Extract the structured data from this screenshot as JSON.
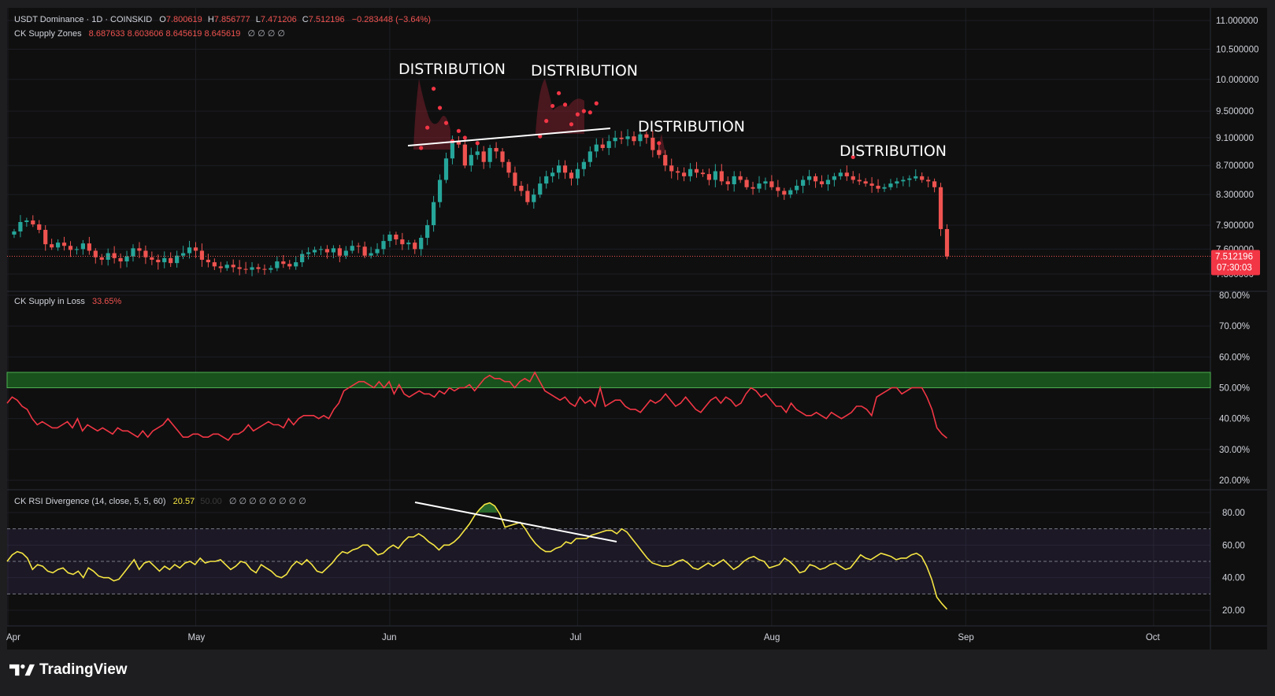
{
  "legend": {
    "main": {
      "symbol": "USDT Dominance · 1D · COINSKID",
      "o_label": "O",
      "o": "7.800619",
      "h_label": "H",
      "h": "7.856777",
      "l_label": "L",
      "l": "7.471206",
      "c_label": "C",
      "c": "7.512196",
      "change": "−0.283448 (−3.64%)"
    },
    "supply_zones": {
      "name": "CK Supply Zones",
      "values": "8.687633  8.603606  8.645619  8.645619",
      "na": "∅  ∅  ∅  ∅"
    },
    "supply_loss": {
      "name": "CK Supply in Loss",
      "value": "33.65%"
    },
    "rsi": {
      "name": "CK RSI Divergence (14, close, 5, 5, 60)",
      "value": "20.57",
      "dim": "50.00",
      "na": "∅  ∅  ∅  ∅  ∅  ∅  ∅  ∅"
    }
  },
  "price_badge": {
    "value": "7.512196",
    "countdown": "07:30:03"
  },
  "annotations": [
    "DISTRIBUTION",
    "DISTRIBUTION",
    "DISTRIBUTION",
    "DISTRIBUTION"
  ],
  "brand": {
    "name": "TradingView"
  },
  "colors": {
    "up": "#26a69a",
    "down": "#ef5350",
    "supply_line": "#f23645",
    "rsi_line": "#f5e543",
    "zone_green": "#1b5e20",
    "background": "#0f0f0f"
  },
  "chart_data": [
    {
      "type": "candlestick",
      "title": "USDT Dominance · 1D · COINSKID",
      "y_ticks": [
        "11.000000",
        "10.500000",
        "10.000000",
        "9.500000",
        "9.100000",
        "8.700000",
        "8.300000",
        "7.900000",
        "7.600000",
        "7.300000"
      ],
      "ylim": [
        7.3,
        11.0
      ],
      "scale": "log",
      "x_tick_labels": [
        "Apr",
        "May",
        "Jun",
        "Jul",
        "Aug",
        "Sep",
        "Oct"
      ],
      "last_price": 7.512196,
      "closes": [
        7.82,
        7.94,
        7.96,
        7.91,
        7.84,
        7.66,
        7.62,
        7.68,
        7.64,
        7.59,
        7.6,
        7.67,
        7.58,
        7.5,
        7.47,
        7.55,
        7.49,
        7.45,
        7.51,
        7.61,
        7.58,
        7.5,
        7.47,
        7.44,
        7.49,
        7.43,
        7.52,
        7.55,
        7.62,
        7.58,
        7.47,
        7.44,
        7.39,
        7.37,
        7.41,
        7.38,
        7.36,
        7.35,
        7.38,
        7.36,
        7.35,
        7.37,
        7.45,
        7.42,
        7.39,
        7.44,
        7.54,
        7.56,
        7.59,
        7.6,
        7.56,
        7.61,
        7.52,
        7.58,
        7.64,
        7.63,
        7.52,
        7.55,
        7.6,
        7.7,
        7.78,
        7.72,
        7.66,
        7.68,
        7.6,
        7.74,
        7.9,
        8.2,
        8.5,
        8.8,
        9.05,
        9.0,
        8.7,
        8.85,
        8.9,
        8.75,
        8.95,
        8.9,
        8.75,
        8.6,
        8.42,
        8.35,
        8.2,
        8.3,
        8.45,
        8.55,
        8.6,
        8.7,
        8.6,
        8.52,
        8.65,
        8.75,
        8.9,
        9.0,
        8.95,
        9.05,
        9.1,
        9.08,
        9.12,
        9.05,
        9.15,
        9.1,
        8.92,
        8.85,
        8.7,
        8.62,
        8.6,
        8.55,
        8.65,
        8.6,
        8.58,
        8.5,
        8.62,
        8.48,
        8.44,
        8.55,
        8.5,
        8.4,
        8.38,
        8.45,
        8.48,
        8.4,
        8.35,
        8.3,
        8.36,
        8.42,
        8.5,
        8.55,
        8.48,
        8.44,
        8.5,
        8.55,
        8.6,
        8.55,
        8.5,
        8.48,
        8.45,
        8.42,
        8.38,
        8.4,
        8.45,
        8.48,
        8.5,
        8.52,
        8.55,
        8.5,
        8.48,
        8.4,
        7.85,
        7.51
      ],
      "supply_zone_dots": [
        8.95,
        9.25,
        9.85,
        9.55,
        9.32,
        9.05,
        9.2,
        9.1,
        9.02,
        9.12,
        9.35,
        9.58,
        9.78,
        9.6,
        9.3,
        9.45,
        9.5,
        9.48,
        9.62,
        9.02,
        8.82
      ]
    },
    {
      "type": "line",
      "title": "CK Supply in Loss",
      "y_ticks": [
        "80.00%",
        "70.00%",
        "60.00%",
        "50.00%",
        "40.00%",
        "30.00%",
        "20.00%"
      ],
      "ylim": [
        20,
        80
      ],
      "band": [
        50,
        55
      ],
      "last_value": 33.65,
      "values": [
        45,
        47,
        46,
        44,
        43,
        40,
        38,
        39,
        38,
        37,
        37,
        38,
        39,
        37,
        40,
        36,
        38,
        37,
        36,
        37,
        36,
        35,
        37,
        36,
        36,
        35,
        34,
        36,
        34,
        36,
        37,
        38,
        40,
        38,
        36,
        34,
        34,
        35,
        35,
        34,
        34,
        35,
        35,
        34,
        33,
        35,
        35,
        36,
        38,
        36,
        37,
        38,
        39,
        38,
        38,
        37,
        40,
        38,
        40,
        41,
        41,
        41,
        40,
        41,
        40,
        43,
        45,
        49,
        50,
        51,
        52,
        52,
        51,
        50,
        52,
        50,
        52,
        48,
        51,
        48,
        47,
        48,
        49,
        48,
        48,
        47,
        49,
        48,
        50,
        49,
        50,
        50,
        51,
        49,
        51,
        53,
        54,
        53,
        53,
        52,
        52,
        50,
        52,
        53,
        52,
        55,
        52,
        49,
        48,
        47,
        46,
        47,
        45,
        44,
        47,
        45,
        46,
        44,
        50,
        44,
        45,
        46,
        46,
        44,
        43,
        43,
        42,
        44,
        46,
        45,
        46,
        48,
        46,
        44,
        45,
        47,
        45,
        43,
        42,
        44,
        46,
        47,
        45,
        47,
        46,
        44,
        45,
        48,
        50,
        49,
        47,
        48,
        46,
        44,
        44,
        42,
        45,
        43,
        42,
        41,
        41,
        42,
        41,
        40,
        42,
        41,
        40,
        41,
        42,
        44,
        44,
        43,
        41,
        47,
        48,
        49,
        50,
        50,
        48,
        49,
        50,
        50,
        50,
        47,
        43,
        37,
        35,
        33.65
      ],
      "color": "#f23645"
    },
    {
      "type": "line",
      "title": "CK RSI Divergence (14, close, 5, 5, 60)",
      "y_ticks": [
        "80.00",
        "60.00",
        "40.00",
        "20.00"
      ],
      "ylim": [
        20,
        80
      ],
      "band": [
        30,
        70
      ],
      "last_value": 20.57,
      "values": [
        50,
        54,
        56,
        55,
        52,
        45,
        48,
        47,
        44,
        43,
        45,
        46,
        43,
        42,
        44,
        40,
        46,
        44,
        41,
        40,
        40,
        38,
        39,
        43,
        47,
        51,
        45,
        49,
        50,
        47,
        44,
        47,
        45,
        48,
        46,
        49,
        50,
        48,
        52,
        49,
        50,
        50,
        51,
        48,
        45,
        47,
        50,
        49,
        45,
        43,
        48,
        46,
        44,
        41,
        40,
        42,
        47,
        50,
        48,
        51,
        48,
        44,
        43,
        46,
        49,
        53,
        56,
        55,
        57,
        58,
        60,
        60,
        57,
        54,
        55,
        58,
        60,
        58,
        62,
        65,
        65,
        67,
        65,
        62,
        60,
        57,
        60,
        60,
        62,
        65,
        69,
        73,
        78,
        82,
        85,
        86,
        84,
        79,
        71,
        72,
        73,
        74,
        70,
        65,
        61,
        58,
        56,
        56,
        58,
        59,
        62,
        61,
        64,
        64,
        64,
        66,
        67,
        68,
        69,
        69,
        67,
        70,
        68,
        64,
        60,
        56,
        52,
        49,
        48,
        47,
        47,
        48,
        50,
        51,
        49,
        46,
        45,
        47,
        49,
        47,
        49,
        51,
        48,
        45,
        47,
        50,
        52,
        53,
        51,
        50,
        46,
        47,
        48,
        52,
        50,
        47,
        43,
        44,
        48,
        47,
        45,
        46,
        48,
        49,
        47,
        45,
        46,
        50,
        54,
        52,
        51,
        53,
        55,
        54,
        53,
        51,
        52,
        52,
        54,
        55,
        53,
        47,
        39,
        28,
        24,
        20.57
      ],
      "color": "#f5e543"
    }
  ]
}
